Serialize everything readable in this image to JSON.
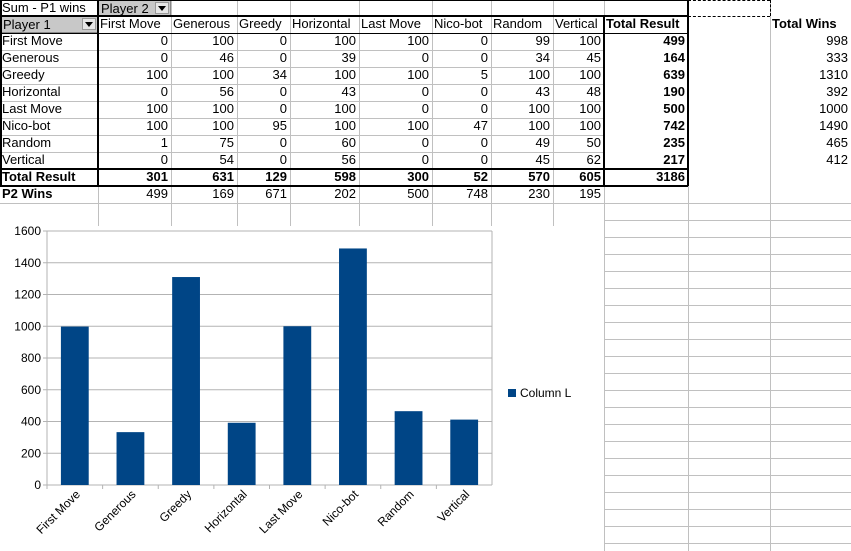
{
  "pivot": {
    "data_field": "Sum - P1 wins",
    "col_field": "Player 2",
    "row_field": "Player 1",
    "columns": [
      "First Move",
      "Generous",
      "Greedy",
      "Horizontal",
      "Last Move",
      "Nico-bot",
      "Random",
      "Vertical"
    ],
    "total_label": "Total Result",
    "rows": [
      {
        "name": "First Move",
        "values": [
          0,
          100,
          0,
          100,
          100,
          0,
          99,
          100
        ],
        "total": 499
      },
      {
        "name": "Generous",
        "values": [
          0,
          46,
          0,
          39,
          0,
          0,
          34,
          45
        ],
        "total": 164
      },
      {
        "name": "Greedy",
        "values": [
          100,
          100,
          34,
          100,
          100,
          5,
          100,
          100
        ],
        "total": 639
      },
      {
        "name": "Horizontal",
        "values": [
          0,
          56,
          0,
          43,
          0,
          0,
          43,
          48
        ],
        "total": 190
      },
      {
        "name": "Last Move",
        "values": [
          100,
          100,
          0,
          100,
          0,
          0,
          100,
          100
        ],
        "total": 500
      },
      {
        "name": "Nico-bot",
        "values": [
          100,
          100,
          95,
          100,
          100,
          47,
          100,
          100
        ],
        "total": 742
      },
      {
        "name": "Random",
        "values": [
          1,
          75,
          0,
          60,
          0,
          0,
          49,
          50
        ],
        "total": 235
      },
      {
        "name": "Vertical",
        "values": [
          0,
          54,
          0,
          56,
          0,
          0,
          45,
          62
        ],
        "total": 217
      }
    ],
    "total_row": {
      "values": [
        301,
        631,
        129,
        598,
        300,
        52,
        570,
        605
      ],
      "total": 3186
    },
    "p2_label": "P2 Wins",
    "p2_values": [
      499,
      169,
      671,
      202,
      500,
      748,
      230,
      195
    ]
  },
  "side": {
    "header": "Total Wins",
    "values": [
      998,
      333,
      1310,
      392,
      1000,
      1490,
      465,
      412
    ]
  },
  "colors": {
    "bar": "#004586",
    "gridline": "#b3b3b3",
    "sheet_grid": "#c0c0c0",
    "dropdown_bg": "#c8c8c8"
  },
  "chart_data": {
    "type": "bar",
    "categories": [
      "First Move",
      "Generous",
      "Greedy",
      "Horizontal",
      "Last Move",
      "Nico-bot",
      "Random",
      "Vertical"
    ],
    "series": [
      {
        "name": "Column L",
        "values": [
          998,
          333,
          1310,
          392,
          1000,
          1490,
          465,
          412
        ]
      }
    ],
    "ylim": [
      0,
      1600
    ],
    "yticks": [
      0,
      200,
      400,
      600,
      800,
      1000,
      1200,
      1400,
      1600
    ],
    "grid": true,
    "legend_position": "right",
    "title": "",
    "xlabel": "",
    "ylabel": ""
  }
}
